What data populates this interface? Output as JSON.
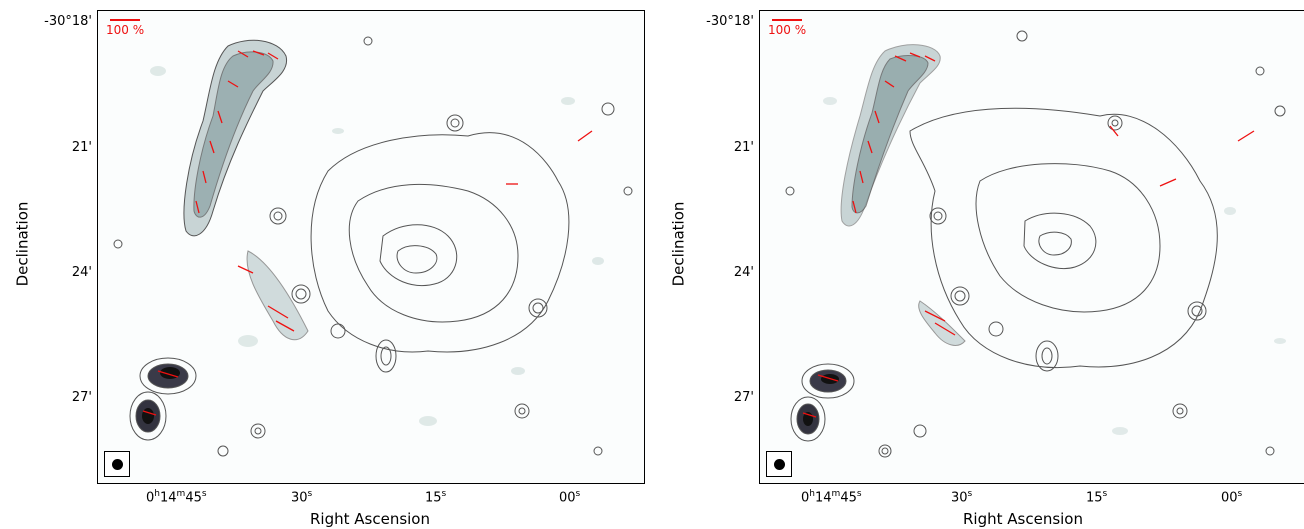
{
  "panels": [
    {
      "y_axis": {
        "label": "Declination",
        "ticks": [
          "-30°18'",
          "21'",
          "24'",
          "27'"
        ]
      },
      "x_axis": {
        "label": "Right Ascension",
        "ticks": [
          {
            "main": "0",
            "h": "h",
            "mid": "14",
            "m": "m",
            "s_val": "45",
            "s": "s"
          },
          {
            "main": "30",
            "s": "s"
          },
          {
            "main": "15",
            "s": "s"
          },
          {
            "main": "00",
            "s": "s"
          }
        ]
      },
      "scale_bar_label": "100 %",
      "colors": {
        "contour": "#555555",
        "vector": "#ee1111"
      }
    },
    {
      "y_axis": {
        "label": "Declination",
        "ticks": [
          "-30°18'",
          "21'",
          "24'",
          "27'"
        ]
      },
      "x_axis": {
        "label": "Right Ascension",
        "ticks": [
          {
            "main": "0",
            "h": "h",
            "mid": "14",
            "m": "m",
            "s_val": "45",
            "s": "s"
          },
          {
            "main": "30",
            "s": "s"
          },
          {
            "main": "15",
            "s": "s"
          },
          {
            "main": "00",
            "s": "s"
          }
        ]
      },
      "scale_bar_label": "100 %",
      "colors": {
        "contour": "#555555",
        "vector": "#ee1111"
      }
    }
  ]
}
